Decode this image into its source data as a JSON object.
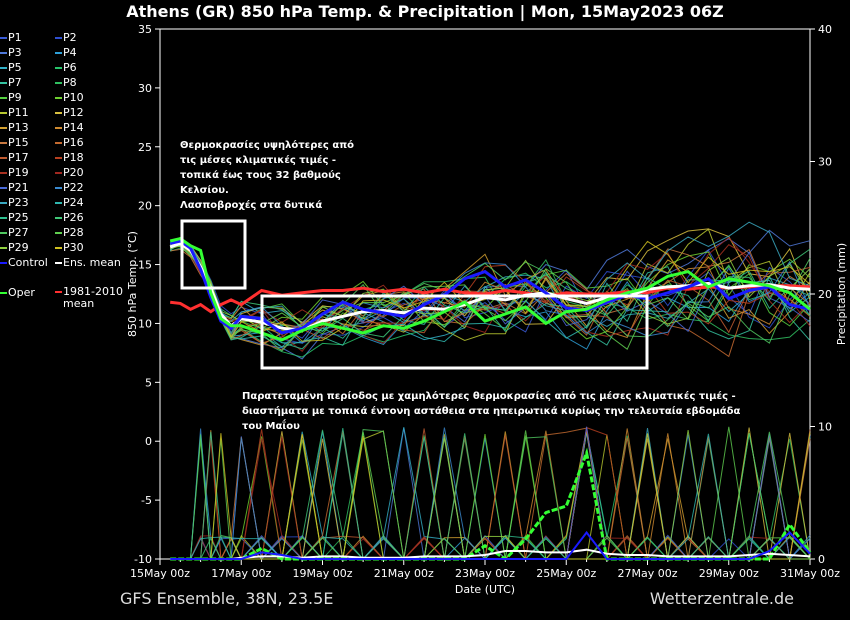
{
  "title": "Athens  (GR)  850 hPa Temp. & Precipitation | Mon, 15May2023 06Z",
  "footer": {
    "left": "GFS Ensemble, 38N, 23.5E",
    "right": "Wetterzentrale.de"
  },
  "annotations": {
    "top": "Θερμοκρασίες υψηλότερες από\nτις μέσες κλιματικές τιμές -\nτοπικά έως τους 32 βαθμούς\nΚελσίου.\nΛασποβροχές στα δυτικά",
    "bottom": "Παρατεταμένη περίοδος με χαμηλότερες θερμοκρασίες από τις μέσες κλιματικές τιμές -\nδιαστήματα με τοπικά έντονη αστάθεια στα ηπειρωτικά κυρίως την τελευταία εβδομάδα\nτου Μαΐου"
  },
  "legend": [
    {
      "label": "P1",
      "color": "#3a5bd6"
    },
    {
      "label": "P2",
      "color": "#2f4fd0"
    },
    {
      "label": "P3",
      "color": "#4f78d8"
    },
    {
      "label": "P4",
      "color": "#2ea0d8"
    },
    {
      "label": "P5",
      "color": "#33b0c8"
    },
    {
      "label": "P6",
      "color": "#27c46a"
    },
    {
      "label": "P7",
      "color": "#35c2a0"
    },
    {
      "label": "P8",
      "color": "#30c060"
    },
    {
      "label": "P9",
      "color": "#55d040"
    },
    {
      "label": "P10",
      "color": "#6ed030"
    },
    {
      "label": "P11",
      "color": "#b8c830"
    },
    {
      "label": "P12",
      "color": "#d8c040"
    },
    {
      "label": "P13",
      "color": "#d4a030"
    },
    {
      "label": "P14",
      "color": "#d08a30"
    },
    {
      "label": "P15",
      "color": "#c87840"
    },
    {
      "label": "P16",
      "color": "#c46a30"
    },
    {
      "label": "P17",
      "color": "#c05a30"
    },
    {
      "label": "P18",
      "color": "#b84020"
    },
    {
      "label": "P19",
      "color": "#a83020"
    },
    {
      "label": "P20",
      "color": "#a02820"
    },
    {
      "label": "P21",
      "color": "#4a6ad8"
    },
    {
      "label": "P22",
      "color": "#3a8ad0"
    },
    {
      "label": "P23",
      "color": "#3aa8c0"
    },
    {
      "label": "P24",
      "color": "#30b8b0"
    },
    {
      "label": "P25",
      "color": "#30c090"
    },
    {
      "label": "P26",
      "color": "#40c878"
    },
    {
      "label": "P27",
      "color": "#50c860"
    },
    {
      "label": "P28",
      "color": "#60d050"
    },
    {
      "label": "P29",
      "color": "#90d040"
    },
    {
      "label": "P30",
      "color": "#d0c020"
    },
    {
      "label": "Control",
      "color": "#1a1aff"
    },
    {
      "label": "Ens. mean",
      "color": "#ffffff"
    },
    {
      "label": "Oper",
      "color": "#33ff33"
    },
    {
      "label": "1981-2010\nmean",
      "color": "#ff3030"
    }
  ],
  "chart_data": {
    "type": "line",
    "x_axis": {
      "label": "Date (UTC)",
      "ticks": [
        "15May 00z",
        "17May 00z",
        "19May 00z",
        "21May 00z",
        "23May 00z",
        "25May 00z",
        "27May 00z",
        "29May 00z",
        "31May 00z"
      ],
      "range_days": [
        0,
        16
      ]
    },
    "y_axis_left": {
      "label": "850 hPa Temp. (°C)",
      "range": [
        -10,
        35
      ],
      "ticks": [
        35,
        30,
        25,
        20,
        15,
        10,
        5,
        0,
        -5,
        -10
      ]
    },
    "y_axis_right": {
      "label": "Precipitation (mm)",
      "range": [
        0,
        40
      ],
      "ticks": [
        40,
        30,
        20,
        10,
        0
      ]
    },
    "x_days": [
      0.25,
      0.5,
      0.75,
      1.0,
      1.25,
      1.5,
      1.75,
      2.0,
      2.5,
      3.0,
      3.5,
      4.0,
      4.5,
      5.0,
      5.5,
      6.0,
      6.5,
      7.0,
      7.5,
      8.0,
      8.5,
      9.0,
      9.5,
      10.0,
      10.5,
      11.0,
      11.5,
      12.0,
      12.5,
      13.0,
      13.5,
      14.0,
      14.5,
      15.0,
      15.5,
      16.0
    ],
    "series": [
      {
        "name": "1981-2010\nmean",
        "color": "#ff3030",
        "values": [
          11.8,
          11.7,
          11.2,
          11.6,
          11.0,
          11.6,
          12.0,
          11.6,
          12.8,
          12.4,
          12.6,
          12.8,
          12.8,
          13.0,
          12.7,
          12.9,
          12.6,
          12.9,
          12.6,
          12.5,
          12.8,
          12.6,
          12.3,
          12.6,
          12.5,
          12.5,
          12.7,
          12.6,
          13.0,
          12.9,
          13.1,
          13.0,
          13.1,
          13.2,
          13.2,
          13.1
        ]
      },
      {
        "name": "Ens. mean",
        "color": "#ffffff",
        "values": [
          16.5,
          16.8,
          16.2,
          14.8,
          13.0,
          10.8,
          9.8,
          10.4,
          10.1,
          9.6,
          9.4,
          10.2,
          10.6,
          11.0,
          11.1,
          10.9,
          11.3,
          11.2,
          11.6,
          12.2,
          12.0,
          12.4,
          12.6,
          12.1,
          11.7,
          12.2,
          12.3,
          12.9,
          13.1,
          13.2,
          13.4,
          13.0,
          13.2,
          13.3,
          13.0,
          12.9
        ]
      },
      {
        "name": "Control",
        "color": "#1a1aff",
        "values": [
          16.8,
          17.0,
          16.4,
          14.6,
          12.2,
          10.2,
          9.6,
          10.6,
          10.4,
          9.2,
          9.6,
          10.8,
          11.8,
          11.2,
          10.9,
          10.6,
          11.6,
          12.4,
          13.8,
          14.4,
          13.1,
          13.7,
          12.6,
          11.3,
          11.1,
          11.8,
          12.4,
          12.1,
          12.6,
          13.1,
          13.8,
          12.1,
          12.8,
          13.1,
          11.6,
          11.2
        ]
      },
      {
        "name": "Oper",
        "color": "#33ff33",
        "values": [
          17.0,
          17.2,
          16.6,
          16.2,
          12.6,
          10.4,
          9.8,
          9.8,
          9.2,
          8.6,
          9.4,
          10.0,
          9.6,
          9.2,
          9.8,
          9.6,
          10.2,
          11.0,
          11.8,
          10.2,
          10.8,
          11.4,
          10.0,
          11.0,
          11.2,
          12.0,
          12.6,
          13.0,
          14.0,
          14.4,
          13.1,
          13.8,
          13.5,
          13.2,
          12.6,
          11.2
        ]
      }
    ],
    "precipitation_series": [
      {
        "name": "Oper",
        "color": "#33ff33",
        "values_mm": [
          0,
          0,
          0,
          0,
          0,
          0,
          0,
          0,
          0.8,
          0,
          0,
          0,
          0,
          0,
          0,
          0,
          0,
          0,
          0,
          1.0,
          0,
          1.5,
          3.5,
          4.0,
          8.0,
          0,
          0,
          0,
          0,
          0,
          0,
          0,
          0,
          0,
          2.6,
          0.5
        ]
      },
      {
        "name": "Ens. mean",
        "color": "#ffffff",
        "values_mm": [
          0,
          0,
          0,
          0,
          0,
          0,
          0,
          0.1,
          0.2,
          0.2,
          0.1,
          0.2,
          0.2,
          0.1,
          0.1,
          0.1,
          0.2,
          0.2,
          0.2,
          0.3,
          0.6,
          0.6,
          0.5,
          0.5,
          0.7,
          0.4,
          0.3,
          0.3,
          0.2,
          0.2,
          0.2,
          0.2,
          0.3,
          0.4,
          0.3,
          0.2
        ]
      },
      {
        "name": "Control",
        "color": "#1a1aff",
        "values_mm": [
          0,
          0,
          0,
          0,
          0,
          0,
          0,
          0,
          0.5,
          0.3,
          0,
          0,
          0,
          0,
          0,
          0,
          0,
          0,
          0,
          0,
          0,
          0,
          0,
          0,
          2.0,
          0,
          0,
          0,
          0,
          0,
          0,
          0,
          0,
          0.6,
          2.0,
          0.4
        ]
      }
    ]
  }
}
